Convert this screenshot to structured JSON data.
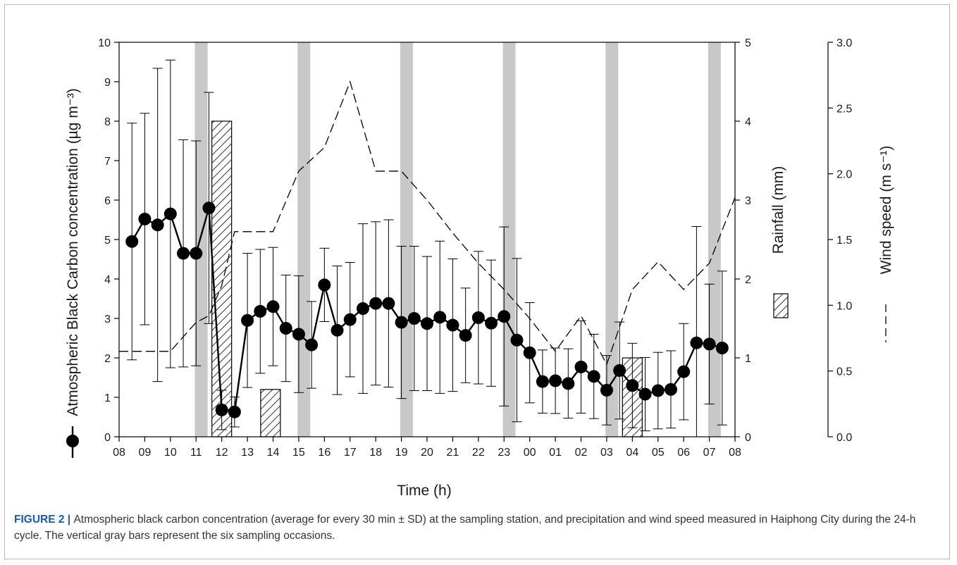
{
  "colors": {
    "sampling_bar": "#c8c8c8",
    "line": "#000000",
    "caption_label": "#1c5aa6"
  },
  "caption": {
    "label": "FIGURE 2",
    "separator": " | ",
    "text": "Atmospheric black carbon concentration (average for every 30 min ± SD) at the sampling station, and precipitation and wind speed measured in Haiphong City during the 24-h cycle. The vertical gray bars represent the six sampling occasions."
  },
  "chart_data": {
    "type": "line",
    "xlabel": "Time (h)",
    "x_ticks": [
      "08",
      "09",
      "10",
      "11",
      "12",
      "13",
      "14",
      "15",
      "16",
      "17",
      "18",
      "19",
      "20",
      "21",
      "22",
      "23",
      "00",
      "01",
      "02",
      "03",
      "04",
      "05",
      "06",
      "07",
      "08"
    ],
    "x_range": [
      8,
      32
    ],
    "left_axis": {
      "label": "Atmospheric Black Carbon concentration (µg m⁻³)",
      "range": [
        0,
        10
      ],
      "ticks": [
        "0",
        "1",
        "2",
        "3",
        "4",
        "5",
        "6",
        "7",
        "8",
        "9",
        "10"
      ]
    },
    "right_axis_1": {
      "label": "Rainfall (mm)",
      "range": [
        0,
        5
      ],
      "ticks": [
        "0",
        "1",
        "2",
        "3",
        "4",
        "5"
      ]
    },
    "right_axis_2": {
      "label": "Wind speed (m s⁻¹)",
      "range": [
        0,
        3
      ],
      "ticks": [
        "0.0",
        "0.5",
        "1.0",
        "1.5",
        "2.0",
        "2.5",
        "3.0"
      ]
    },
    "sampling_occasions": [
      11.0,
      15.0,
      19.0,
      23.0,
      27.0,
      31.0
    ],
    "series": [
      {
        "type": "line-markers",
        "axis": "left",
        "x": [
          8.5,
          9,
          9.5,
          10,
          10.5,
          11,
          11.5,
          12,
          12.5,
          13,
          13.5,
          14,
          14.5,
          15,
          15.5,
          16,
          16.5,
          17,
          17.5,
          18,
          18.5,
          19,
          19.5,
          20,
          20.5,
          21,
          21.5,
          22,
          22.5,
          23,
          23.5,
          24,
          24.5,
          25,
          25.5,
          26,
          26.5,
          27,
          27.5,
          28,
          28.5,
          29,
          29.5,
          30,
          30.5,
          31,
          31.5,
          32
        ],
        "y": [
          4.95,
          5.52,
          5.37,
          5.65,
          4.65,
          4.65,
          5.8,
          0.68,
          0.63,
          2.95,
          3.18,
          3.3,
          2.75,
          2.6,
          2.33,
          3.85,
          2.7,
          2.97,
          3.25,
          3.38,
          3.38,
          2.9,
          3.0,
          2.87,
          3.03,
          2.83,
          2.57,
          3.02,
          2.88,
          3.05,
          2.45,
          2.13,
          1.4,
          1.42,
          1.35,
          1.77,
          1.53,
          1.18,
          1.68,
          1.3,
          1.08,
          1.17,
          1.2,
          1.65,
          2.38,
          2.35,
          2.25,
          null
        ],
        "sd": [
          3.0,
          2.68,
          3.97,
          3.9,
          2.88,
          2.85,
          2.93,
          0.5,
          0.38,
          1.7,
          1.57,
          1.5,
          1.35,
          1.48,
          1.1,
          0.93,
          1.63,
          1.45,
          2.15,
          2.07,
          2.12,
          1.93,
          1.83,
          1.7,
          1.93,
          1.68,
          1.2,
          1.68,
          1.6,
          2.27,
          2.07,
          1.27,
          0.8,
          0.83,
          0.88,
          1.17,
          1.07,
          0.88,
          1.23,
          1.07,
          0.93,
          0.97,
          0.98,
          1.22,
          2.95,
          1.52,
          1.95,
          null
        ]
      },
      {
        "type": "bar",
        "axis": "right_1",
        "x": [
          12.0,
          13.9,
          28.0
        ],
        "values": [
          4.0,
          0.6,
          1.0
        ]
      },
      {
        "type": "dashed-line",
        "axis": "right_2",
        "x": [
          8,
          9,
          10,
          11,
          11.5,
          12,
          12.5,
          13,
          14,
          15,
          16,
          17,
          18,
          19,
          20,
          21,
          22,
          23,
          24,
          25,
          26,
          27,
          28,
          29,
          30,
          31,
          32
        ],
        "values": [
          0.65,
          0.65,
          0.65,
          0.87,
          0.92,
          1.15,
          1.56,
          1.56,
          1.56,
          2.02,
          2.2,
          2.7,
          2.02,
          2.02,
          1.8,
          1.55,
          1.32,
          1.12,
          0.9,
          0.65,
          0.92,
          0.55,
          1.12,
          1.33,
          1.12,
          1.32,
          1.82
        ]
      }
    ]
  }
}
